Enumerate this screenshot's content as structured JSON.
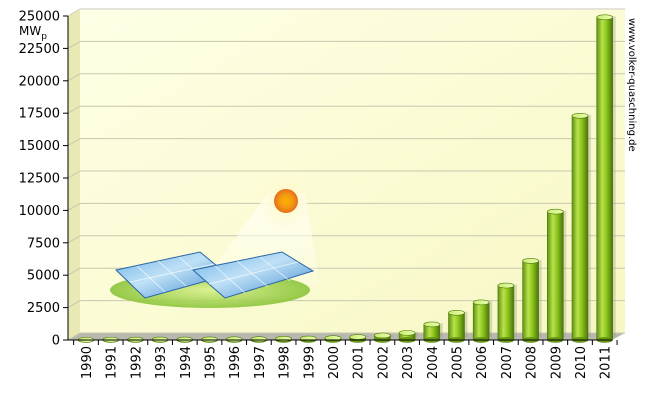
{
  "chart_data": {
    "type": "bar",
    "ylabel": "MW",
    "ylabel_subscript": "p",
    "watermark": "www.volker-quaschning.de",
    "categories": [
      "1990",
      "1991",
      "1992",
      "1993",
      "1994",
      "1995",
      "1996",
      "1997",
      "1998",
      "1999",
      "2000",
      "2001",
      "2002",
      "2003",
      "2004",
      "2005",
      "2006",
      "2007",
      "2008",
      "2009",
      "2010",
      "2011"
    ],
    "values": [
      10,
      20,
      25,
      30,
      35,
      40,
      50,
      60,
      90,
      110,
      140,
      230,
      350,
      550,
      1200,
      2100,
      2900,
      4200,
      6100,
      9900,
      17300,
      24900
    ],
    "ylim": [
      0,
      25000
    ],
    "yticks": [
      0,
      2500,
      5000,
      7500,
      10000,
      12500,
      15000,
      17500,
      20000,
      22500,
      25000
    ],
    "grid": true,
    "colors": {
      "plot_background": "#fbfbd0",
      "plot_background_light": "#ffffe8",
      "floor": "#a8a8a0",
      "bar_main": "#8fc81e",
      "bar_light": "#c6ea5e",
      "bar_dark": "#4f7a0c",
      "bar_top": "#e0f7a0",
      "axis": "#000000",
      "grid": "#c8c8b0"
    }
  }
}
